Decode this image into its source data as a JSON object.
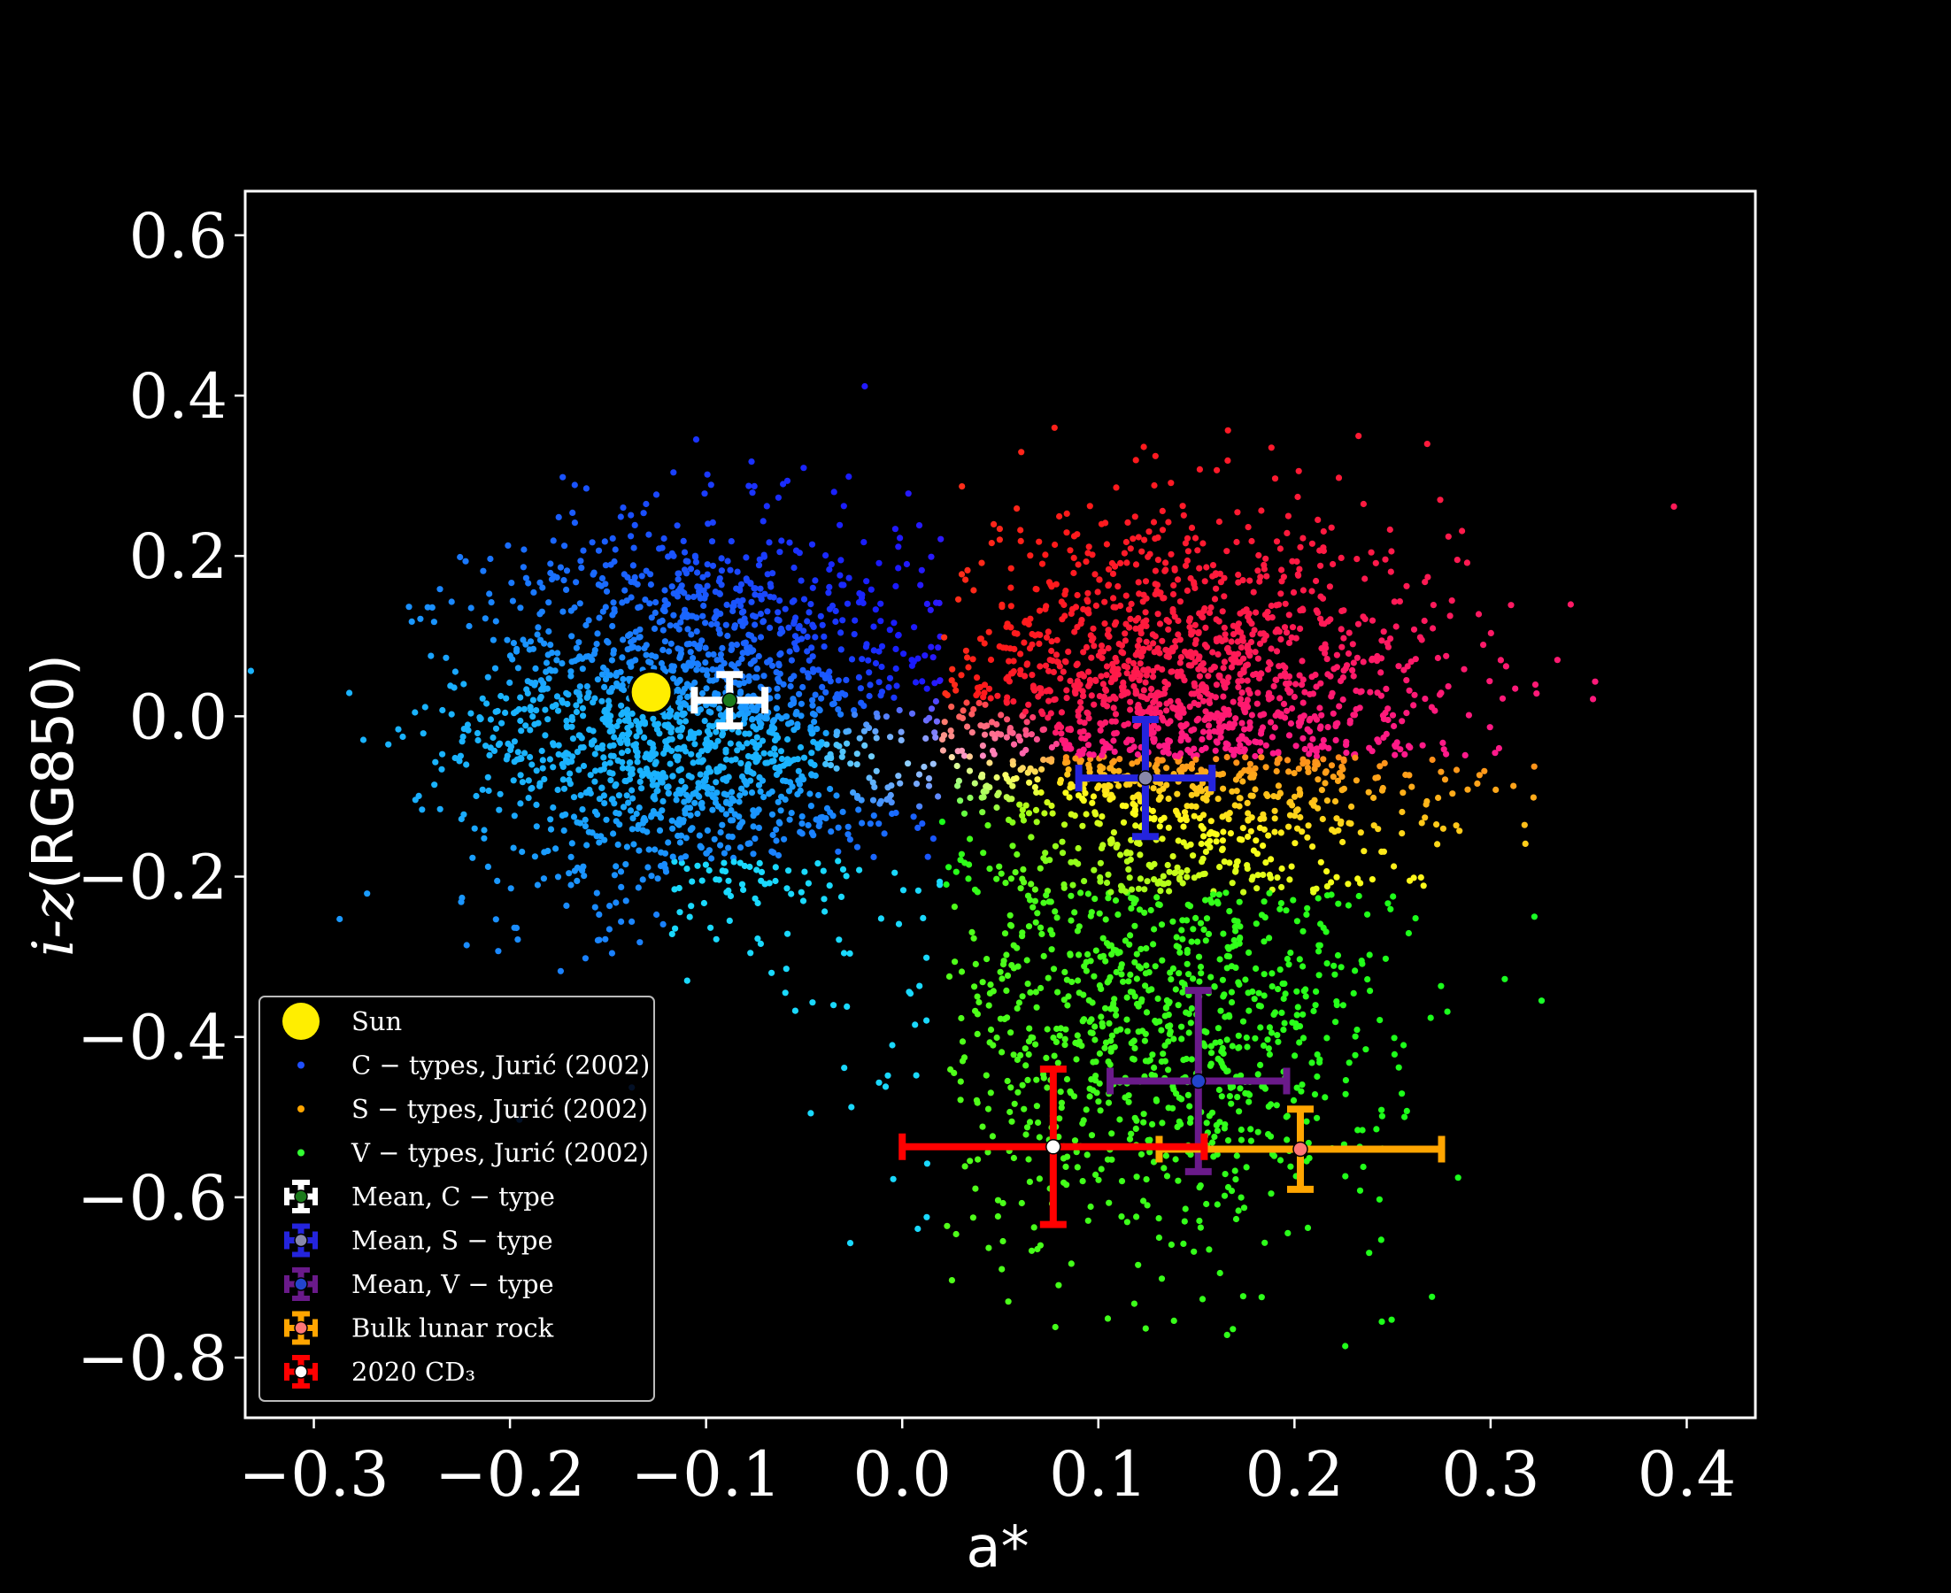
{
  "chart_data": {
    "type": "scatter",
    "xlabel": "a*",
    "ylabel_italic": "i-z",
    "ylabel_rest": "(RG850)",
    "xlim": [
      -0.335,
      0.435
    ],
    "ylim": [
      -0.875,
      0.655
    ],
    "x_ticks": [
      -0.3,
      -0.2,
      -0.1,
      0.0,
      0.1,
      0.2,
      0.3,
      0.4
    ],
    "x_tick_labels": [
      "−0.3",
      "−0.2",
      "−0.1",
      "0.0",
      "0.1",
      "0.2",
      "0.3",
      "0.4"
    ],
    "y_ticks": [
      0.6,
      0.4,
      0.2,
      0.0,
      -0.2,
      -0.4,
      -0.6,
      -0.8
    ],
    "y_tick_labels": [
      "0.6",
      "0.4",
      "0.2",
      "0.0",
      "−0.2",
      "−0.4",
      "−0.6",
      "−0.8"
    ],
    "grid": false,
    "legend_position": "lower-left",
    "background": "#000000",
    "scatter_clouds": [
      {
        "name": "C − types, Jurić (2002)",
        "color": "#1f4fff",
        "center": [
          -0.11,
          0.0
        ],
        "spread": [
          0.055,
          0.12
        ],
        "points": 1800
      },
      {
        "name": "S − types, Jurić (2002)",
        "color": "#ff8c00",
        "center": [
          0.14,
          0.0
        ],
        "spread": [
          0.07,
          0.12
        ],
        "points": 2000
      },
      {
        "name": "V − types, Jurić (2002)",
        "color": "#33ff33",
        "center": [
          0.13,
          -0.4
        ],
        "spread": [
          0.06,
          0.13
        ],
        "points": 900
      }
    ],
    "sun": {
      "label": "Sun",
      "x": -0.128,
      "y": 0.03,
      "color": "#ffee00"
    },
    "mean_points": [
      {
        "label": "Mean, C − type",
        "x": -0.088,
        "y": 0.02,
        "xerr": 0.018,
        "yerr": 0.032,
        "color": "#ffffff",
        "marker": "#1b7a1b"
      },
      {
        "label": "Mean, S − type",
        "x": 0.124,
        "y": -0.077,
        "xerr": 0.034,
        "yerr": 0.073,
        "color": "#2424dd",
        "marker": "#8888aa"
      },
      {
        "label": "Mean, V − type",
        "x": 0.151,
        "y": -0.455,
        "xerr": 0.045,
        "yerr": 0.113,
        "color": "#6a1a8a",
        "marker": "#2244cc"
      },
      {
        "label": "Bulk lunar rock",
        "x": 0.203,
        "y": -0.54,
        "xerr": 0.072,
        "yerr": 0.05,
        "color": "#ffa500",
        "marker": "#ff7777"
      },
      {
        "label": "2020 CD₃",
        "x": 0.077,
        "y": -0.537,
        "xerr": 0.077,
        "yerr": 0.097,
        "color": "#ff0000",
        "marker": "#ffffff"
      }
    ],
    "legend": [
      {
        "label": "Sun",
        "kind": "sun",
        "color": "#ffee00"
      },
      {
        "label": "C − types,  Jurić (2002)",
        "kind": "dot",
        "color": "#1f4fff"
      },
      {
        "label": "S − types,  Jurić (2002)",
        "kind": "dot",
        "color": "#ffa500"
      },
      {
        "label": "V − types,  Jurić (2002)",
        "kind": "dot",
        "color": "#33ff33"
      },
      {
        "label": "Mean,  C − type",
        "kind": "err",
        "color": "#ffffff",
        "marker": "#1b7a1b"
      },
      {
        "label": "Mean,  S − type",
        "kind": "err",
        "color": "#2424dd",
        "marker": "#8888aa"
      },
      {
        "label": "Mean,  V − type",
        "kind": "err",
        "color": "#6a1a8a",
        "marker": "#2244cc"
      },
      {
        "label": "Bulk lunar rock",
        "kind": "err",
        "color": "#ffa500",
        "marker": "#ff7777"
      },
      {
        "label": "2020 CD₃",
        "kind": "err",
        "color": "#ff0000",
        "marker": "#ffffff"
      }
    ]
  }
}
